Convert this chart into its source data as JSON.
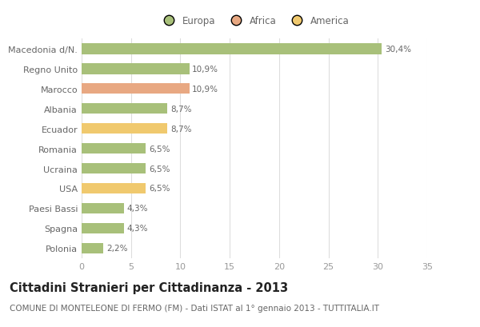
{
  "categories": [
    "Macedonia d/N.",
    "Regno Unito",
    "Marocco",
    "Albania",
    "Ecuador",
    "Romania",
    "Ucraina",
    "USA",
    "Paesi Bassi",
    "Spagna",
    "Polonia"
  ],
  "values": [
    30.4,
    10.9,
    10.9,
    8.7,
    8.7,
    6.5,
    6.5,
    6.5,
    4.3,
    4.3,
    2.2
  ],
  "labels": [
    "30,4%",
    "10,9%",
    "10,9%",
    "8,7%",
    "8,7%",
    "6,5%",
    "6,5%",
    "6,5%",
    "4,3%",
    "4,3%",
    "2,2%"
  ],
  "colors": [
    "#a8c07a",
    "#a8c07a",
    "#e8a882",
    "#a8c07a",
    "#f0c96e",
    "#a8c07a",
    "#a8c07a",
    "#f0c96e",
    "#a8c07a",
    "#a8c07a",
    "#a8c07a"
  ],
  "legend_labels": [
    "Europa",
    "Africa",
    "America"
  ],
  "legend_colors": [
    "#a8c07a",
    "#e8a882",
    "#f0c96e"
  ],
  "title": "Cittadini Stranieri per Cittadinanza - 2013",
  "subtitle": "COMUNE DI MONTELEONE DI FERMO (FM) - Dati ISTAT al 1° gennaio 2013 - TUTTITALIA.IT",
  "xlim": [
    0,
    35
  ],
  "xticks": [
    0,
    5,
    10,
    15,
    20,
    25,
    30,
    35
  ],
  "background_color": "#ffffff",
  "grid_color": "#dddddd",
  "bar_height": 0.55,
  "title_fontsize": 10.5,
  "subtitle_fontsize": 7.5,
  "label_fontsize": 7.5,
  "tick_fontsize": 8,
  "legend_fontsize": 8.5
}
